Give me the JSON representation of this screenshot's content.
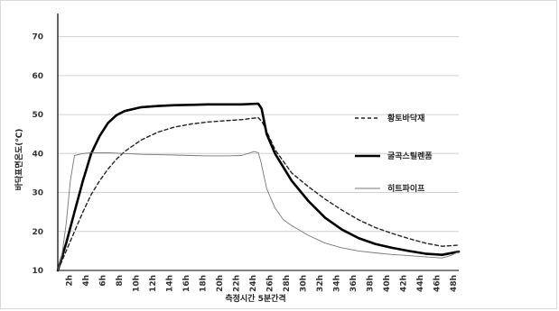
{
  "chart_data": {
    "type": "line",
    "xlabel": "측정시간 5분간격",
    "ylabel": "바닥표면온도(℃)",
    "ylim": [
      10,
      75
    ],
    "yticks": [
      10,
      20,
      30,
      40,
      50,
      60,
      70
    ],
    "xlim": [
      0,
      48
    ],
    "xtick_labels": [
      "2h",
      "4h",
      "6h",
      "8h",
      "10h",
      "12h",
      "14h",
      "16h",
      "18h",
      "20h",
      "22h",
      "24h",
      "26h",
      "28h",
      "30h",
      "32h",
      "34h",
      "36h",
      "38h",
      "40h",
      "42h",
      "44h",
      "46h",
      "48h"
    ],
    "grid": "horizontal",
    "legend": "right",
    "series": [
      {
        "name": "황토바닥재",
        "color": "#222222",
        "style": "dashed",
        "x": [
          0,
          1,
          2,
          3,
          4,
          5,
          6,
          7,
          8,
          10,
          12,
          14,
          16,
          18,
          20,
          22,
          24,
          24.5,
          26,
          28,
          30,
          32,
          34,
          36,
          38,
          40,
          42,
          44,
          46,
          48
        ],
        "y": [
          10,
          15,
          20,
          25,
          29.5,
          33,
          36,
          38.5,
          40.5,
          43.5,
          45.5,
          46.8,
          47.6,
          48.1,
          48.4,
          48.7,
          49.2,
          48,
          41,
          35,
          31.5,
          28.3,
          25.5,
          23,
          21,
          19.5,
          18.2,
          17,
          16.2,
          16.5
        ]
      },
      {
        "name": "굴곡스틸렌폼",
        "color": "#000000",
        "style": "solid-thick",
        "x": [
          0,
          1,
          2,
          3,
          4,
          5,
          6,
          7,
          8,
          10,
          12,
          14,
          16,
          18,
          20,
          22,
          24,
          24.4,
          25,
          26,
          28,
          30,
          32,
          34,
          36,
          38,
          40,
          42,
          44,
          46,
          48
        ],
        "y": [
          10,
          17,
          25,
          33,
          40,
          44.5,
          47.8,
          49.8,
          50.9,
          51.9,
          52.2,
          52.4,
          52.5,
          52.6,
          52.6,
          52.6,
          52.8,
          51.5,
          45,
          40,
          33,
          27.8,
          23.5,
          20.5,
          18.3,
          16.8,
          15.8,
          15,
          14.3,
          14,
          14.8
        ]
      },
      {
        "name": "히트파이프",
        "color": "#777777",
        "style": "thin",
        "x": [
          0,
          0.5,
          1,
          1.5,
          2,
          3,
          4,
          6,
          8,
          10,
          12,
          14,
          16,
          18,
          20,
          22,
          23.5,
          24,
          24.3,
          25,
          26,
          27,
          28,
          30,
          32,
          34,
          36,
          38,
          40,
          42,
          44,
          46,
          47,
          48
        ],
        "y": [
          10,
          14,
          22,
          33,
          39.5,
          40,
          40.2,
          40.2,
          40,
          39.8,
          39.7,
          39.6,
          39.5,
          39.4,
          39.4,
          39.5,
          40.5,
          40.2,
          38,
          31,
          26,
          23,
          21.5,
          19,
          17,
          15.8,
          15,
          14.5,
          14.1,
          13.8,
          13.5,
          13.2,
          13.8,
          14.8
        ]
      }
    ]
  }
}
